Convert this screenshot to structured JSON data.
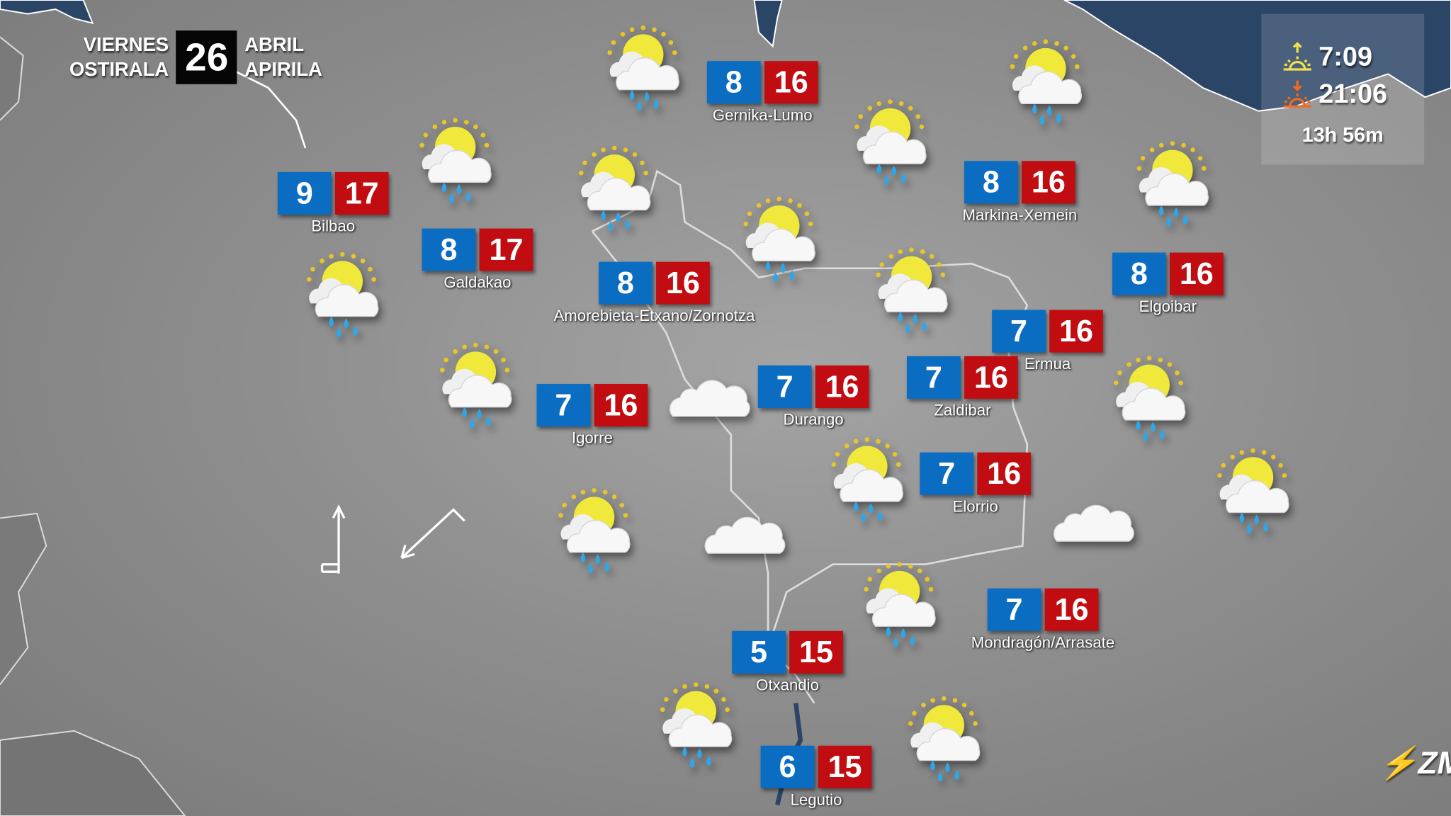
{
  "date": {
    "weekday_es": "VIERNES",
    "weekday_eu": "OSTIRALA",
    "day": "26",
    "month_es": "ABRIL",
    "month_eu": "APIRILA"
  },
  "sun": {
    "sunrise": "7:09",
    "sunset": "21:06",
    "day_length": "13h 56m",
    "sunrise_color": "#f2e04a",
    "sunset_color": "#f26a1b"
  },
  "colors": {
    "min_temp": "#0a6dc2",
    "max_temp": "#c10d12",
    "sea": "#2b4566"
  },
  "cities": [
    {
      "name": "Gernika-Lumo",
      "min": "8",
      "max": "16"
    },
    {
      "name": "Bilbao",
      "min": "9",
      "max": "17"
    },
    {
      "name": "Galdakao",
      "min": "8",
      "max": "17"
    },
    {
      "name": "Amorebieta-Etxano/Zornotza",
      "min": "8",
      "max": "16"
    },
    {
      "name": "Markina-Xemein",
      "min": "8",
      "max": "16"
    },
    {
      "name": "Elgoibar",
      "min": "8",
      "max": "16"
    },
    {
      "name": "Ermua",
      "min": "7",
      "max": "16"
    },
    {
      "name": "Zaldibar",
      "min": "7",
      "max": "16"
    },
    {
      "name": "Durango",
      "min": "7",
      "max": "16"
    },
    {
      "name": "Igorre",
      "min": "7",
      "max": "16"
    },
    {
      "name": "Elorrio",
      "min": "7",
      "max": "16"
    },
    {
      "name": "Mondragón/Arrasate",
      "min": "7",
      "max": "16"
    },
    {
      "name": "Otxandio",
      "min": "5",
      "max": "15"
    },
    {
      "name": "Legutio",
      "min": "6",
      "max": "15"
    }
  ],
  "weather_icons": [
    "sun-cloud-rain",
    "sun-cloud-rain",
    "sun-cloud-rain",
    "sun-cloud-rain",
    "sun-cloud-rain",
    "sun-cloud-rain",
    "sun-cloud-rain",
    "sun-cloud-rain",
    "sun-cloud-rain",
    "sun-cloud-rain",
    "sun-cloud-rain",
    "sun-cloud-rain",
    "sun-cloud-rain",
    "sun-cloud-rain",
    "sun-cloud-rain",
    "sun-cloud-rain",
    "sun-cloud-rain",
    "cloud",
    "cloud",
    "cloud"
  ],
  "wind_icons": [
    "wind-barb-north",
    "wind-arrow-southwest"
  ],
  "logo": "ZM"
}
